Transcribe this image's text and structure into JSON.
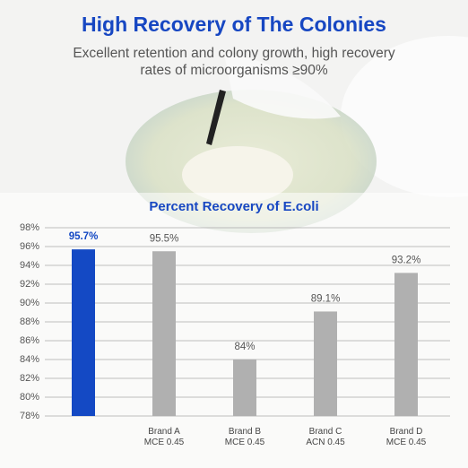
{
  "chart_data": {
    "type": "bar",
    "header_title": "High Recovery of The Colonies",
    "subtitle": "Excellent retention and colony growth, high recovery rates of microorganisms ≥90%",
    "title": "Percent Recovery of E.coli",
    "categories": [
      null,
      "Brand A\nMCE 0.45",
      "Brand B\nMCE 0.45",
      "Brand C\nACN 0.45",
      "Brand D\nMCE 0.45"
    ],
    "values": [
      95.7,
      95.5,
      84,
      89.1,
      93.2
    ],
    "value_labels": [
      "95.7%",
      "95.5%",
      "84%",
      "89.1%",
      "93.2%"
    ],
    "colors": [
      "#1449c4",
      "#b0b0b0",
      "#b0b0b0",
      "#b0b0b0",
      "#b0b0b0"
    ],
    "ylim": [
      78,
      98
    ],
    "yticks": [
      {
        "value": 78,
        "label": "78%"
      },
      {
        "value": 80,
        "label": "80%"
      },
      {
        "value": 82,
        "label": "82%"
      },
      {
        "value": 84,
        "label": "84%"
      },
      {
        "value": 86,
        "label": "86%"
      },
      {
        "value": 88,
        "label": "88%"
      },
      {
        "value": 90,
        "label": "90%"
      },
      {
        "value": 92,
        "label": "92%"
      },
      {
        "value": 94,
        "label": "94%"
      },
      {
        "value": 96,
        "label": "96%"
      },
      {
        "value": 98,
        "label": "98%"
      }
    ],
    "grid": true
  }
}
